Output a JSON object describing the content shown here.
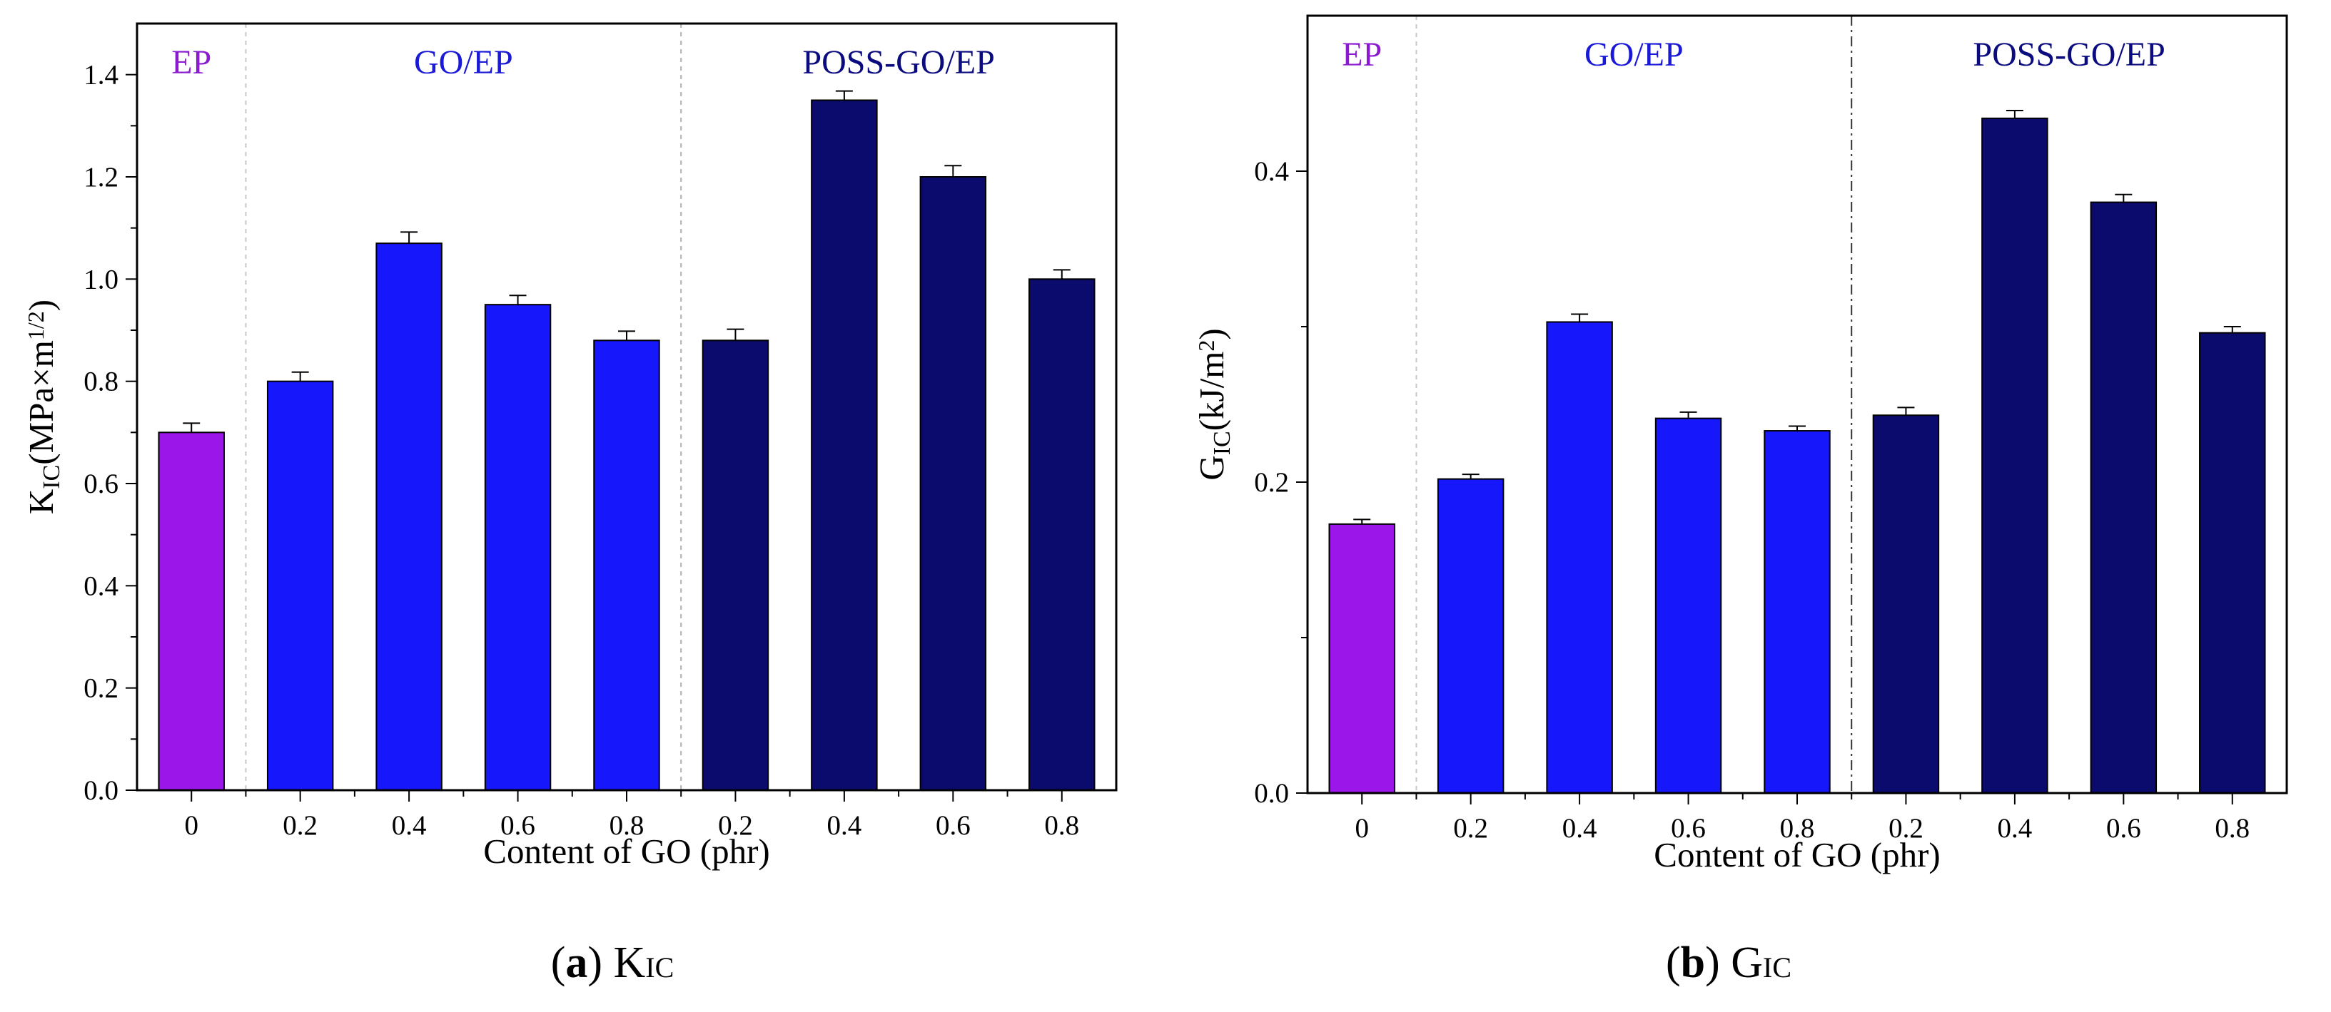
{
  "chart_data": [
    {
      "type": "bar",
      "panel": "a",
      "caption_letter": "a",
      "caption_symbol": "K",
      "caption_sub": "IC",
      "ylabel_main": "K",
      "ylabel_sub": "IC",
      "ylabel_rest": "(MPa×m",
      "ylabel_sup": "1/2",
      "ylabel_close": ")",
      "xlabel": "Content of GO (phr)",
      "categories": [
        "0",
        "0.2",
        "0.4",
        "0.6",
        "0.8",
        "0.2",
        "0.4",
        "0.6",
        "0.8"
      ],
      "values": [
        0.7,
        0.8,
        1.07,
        0.95,
        0.88,
        0.88,
        1.35,
        1.2,
        1.0
      ],
      "errors": [
        0.018,
        0.018,
        0.022,
        0.018,
        0.018,
        0.022,
        0.018,
        0.022,
        0.018
      ],
      "groups": [
        "EP",
        "GO/EP",
        "GO/EP",
        "GO/EP",
        "GO/EP",
        "POSS-GO/EP",
        "POSS-GO/EP",
        "POSS-GO/EP",
        "POSS-GO/EP"
      ],
      "ylim": [
        0,
        1.5
      ],
      "yticks": [
        "0.0",
        "0.2",
        "0.4",
        "0.6",
        "0.8",
        "1.0",
        "1.2",
        "1.4"
      ],
      "ytick_values": [
        0,
        0.2,
        0.4,
        0.6,
        0.8,
        1.0,
        1.2,
        1.4
      ]
    },
    {
      "type": "bar",
      "panel": "b",
      "caption_letter": "b",
      "caption_symbol": "G",
      "caption_sub": "IC",
      "ylabel_main": "G",
      "ylabel_sub": "IC",
      "ylabel_rest": "(kJ/m",
      "ylabel_sup": "2",
      "ylabel_close": ")",
      "xlabel": "Content of GO (phr)",
      "categories": [
        "0",
        "0.2",
        "0.4",
        "0.6",
        "0.8",
        "0.2",
        "0.4",
        "0.6",
        "0.8"
      ],
      "values": [
        0.173,
        0.202,
        0.303,
        0.241,
        0.233,
        0.243,
        0.434,
        0.38,
        0.296
      ],
      "errors": [
        0.003,
        0.003,
        0.005,
        0.004,
        0.003,
        0.005,
        0.005,
        0.005,
        0.004
      ],
      "groups": [
        "EP",
        "GO/EP",
        "GO/EP",
        "GO/EP",
        "GO/EP",
        "POSS-GO/EP",
        "POSS-GO/EP",
        "POSS-GO/EP",
        "POSS-GO/EP"
      ],
      "ylim": [
        0,
        0.5
      ],
      "yticks": [
        "0.0",
        "0.2",
        "0.4"
      ],
      "ytick_values": [
        0,
        0.2,
        0.4
      ]
    }
  ],
  "group_labels": {
    "ep": "EP",
    "go_ep": "GO/EP",
    "poss_go_ep": "POSS-GO/EP"
  },
  "colors": {
    "EP": "#9b16e8",
    "GO/EP": "#1717fb",
    "POSS-GO/EP": "#0b0b6e",
    "ep_text": "#8b1ad1",
    "go_text": "#1a1ad6",
    "poss_text": "#0b0b80"
  }
}
